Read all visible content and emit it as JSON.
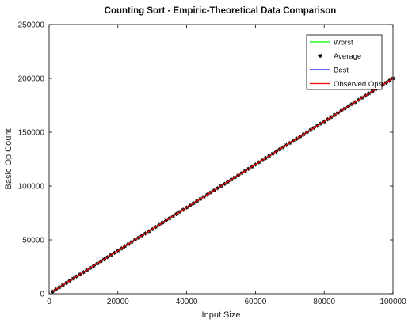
{
  "chart_data": {
    "type": "line",
    "title": "Counting Sort - Empiric-Theoretical Data Comparison",
    "xlabel": "Input Size",
    "ylabel": "Basic Op Count",
    "xlim": [
      0,
      100000
    ],
    "ylim": [
      0,
      250000
    ],
    "xticks": [
      0,
      20000,
      40000,
      60000,
      80000,
      100000
    ],
    "yticks": [
      0,
      50000,
      100000,
      150000,
      200000,
      250000
    ],
    "grid": false,
    "legend_position": "top-right",
    "series": [
      {
        "name": "Worst",
        "style": "line",
        "color": "#00ff00",
        "x": [
          1000,
          100000
        ],
        "y": [
          2000,
          200000
        ]
      },
      {
        "name": "Average",
        "style": "markers",
        "color": "#000000",
        "x_start": 1000,
        "x_end": 100000,
        "x_step": 1000,
        "slope": 2,
        "intercept": 0
      },
      {
        "name": "Best",
        "style": "line",
        "color": "#0000ff",
        "x": [
          1000,
          100000
        ],
        "y": [
          2000,
          200000
        ]
      },
      {
        "name": "Observed Ops",
        "style": "line",
        "color": "#ff0000",
        "x_start": 1000,
        "x_end": 100000,
        "x_step": 1000,
        "slope": 2,
        "intercept": 0
      }
    ]
  }
}
